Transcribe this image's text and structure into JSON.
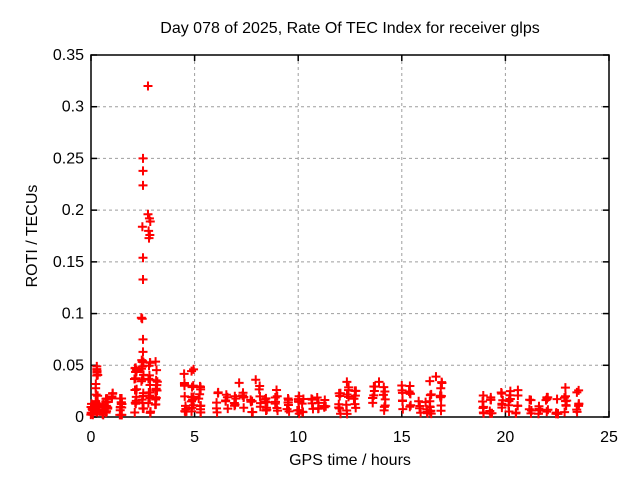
{
  "chart_data": {
    "type": "scatter",
    "title": "Day 078 of 2025, Rate Of TEC Index for receiver glps",
    "xlabel": "GPS time / hours",
    "ylabel": "ROTI / TECUs",
    "xlim": [
      0,
      25
    ],
    "ylim": [
      0,
      0.35
    ],
    "xticks": {
      "values": [
        0,
        5,
        10,
        15,
        20,
        25
      ],
      "labels": [
        "0",
        "5",
        "10",
        "15",
        "20",
        "25"
      ]
    },
    "yticks": {
      "values": [
        0,
        0.05,
        0.1,
        0.15,
        0.2,
        0.25,
        0.3,
        0.35
      ],
      "labels": [
        "0",
        "0.05",
        "0.1",
        "0.15",
        "0.2",
        "0.25",
        "0.3",
        "0.35"
      ]
    },
    "grid": true,
    "legend": "none",
    "marker": {
      "shape": "plus",
      "color": "#ff0000",
      "size": 9,
      "stroke_width": 2
    },
    "grid_color": "#9e9e9e",
    "border_color": "#000000",
    "series_name": "ROTI",
    "points": [
      [
        2.75,
        0.32
      ],
      [
        2.51,
        0.25
      ],
      [
        2.51,
        0.238
      ],
      [
        2.51,
        0.224
      ],
      [
        2.75,
        0.196
      ],
      [
        2.82,
        0.192
      ],
      [
        2.86,
        0.189
      ],
      [
        2.48,
        0.184
      ],
      [
        2.78,
        0.18
      ],
      [
        2.84,
        0.176
      ],
      [
        2.8,
        0.173
      ],
      [
        2.51,
        0.154
      ],
      [
        2.51,
        0.133
      ],
      [
        2.43,
        0.096
      ],
      [
        2.47,
        0.095
      ],
      [
        2.51,
        0.075
      ],
      [
        2.51,
        0.063
      ],
      [
        2.45,
        0.055
      ],
      [
        0.28,
        0.049
      ],
      [
        4.95,
        0.046
      ],
      [
        16.65,
        0.039
      ],
      [
        7.95,
        0.036
      ],
      [
        12.35,
        0.034
      ],
      [
        13.9,
        0.034
      ],
      [
        7.15,
        0.033
      ]
    ],
    "clusters": [
      {
        "x": [
          0.05,
          0.6
        ],
        "y": [
          0.002,
          0.013
        ],
        "n": 25,
        "cols": 3
      },
      {
        "x": [
          0.22,
          0.32
        ],
        "y": [
          0.013,
          0.048
        ],
        "n": 12,
        "cols": 1
      },
      {
        "x": [
          0.75,
          1.45
        ],
        "y": [
          0.002,
          0.018
        ],
        "n": 28,
        "cols": 2
      },
      {
        "x": [
          0.95,
          1.15
        ],
        "y": [
          0.018,
          0.03
        ],
        "n": 4,
        "cols": 1
      },
      {
        "x": [
          2.15,
          3.15
        ],
        "y": [
          0.004,
          0.055
        ],
        "n": 55,
        "cols": 4
      },
      {
        "x": [
          4.55,
          5.25
        ],
        "y": [
          0.004,
          0.045
        ],
        "n": 30,
        "cols": 3
      },
      {
        "x": [
          6.1,
          6.55
        ],
        "y": [
          0.004,
          0.028
        ],
        "n": 10,
        "cols": 2
      },
      {
        "x": [
          6.95,
          7.35
        ],
        "y": [
          0.003,
          0.03
        ],
        "n": 10,
        "cols": 2
      },
      {
        "x": [
          7.75,
          8.15
        ],
        "y": [
          0.004,
          0.032
        ],
        "n": 10,
        "cols": 2
      },
      {
        "x": [
          8.45,
          8.95
        ],
        "y": [
          0.004,
          0.028
        ],
        "n": 14,
        "cols": 2
      },
      {
        "x": [
          9.5,
          10.0
        ],
        "y": [
          0.003,
          0.024
        ],
        "n": 14,
        "cols": 2
      },
      {
        "x": [
          10.25,
          10.7
        ],
        "y": [
          0.004,
          0.018
        ],
        "n": 8,
        "cols": 2
      },
      {
        "x": [
          10.95,
          11.3
        ],
        "y": [
          0.005,
          0.025
        ],
        "n": 8,
        "cols": 2
      },
      {
        "x": [
          12.0,
          12.75
        ],
        "y": [
          0.003,
          0.03
        ],
        "n": 20,
        "cols": 3
      },
      {
        "x": [
          13.65,
          14.15
        ],
        "y": [
          0.006,
          0.032
        ],
        "n": 14,
        "cols": 2
      },
      {
        "x": [
          15.0,
          15.4
        ],
        "y": [
          0.005,
          0.032
        ],
        "n": 12,
        "cols": 2
      },
      {
        "x": [
          15.85,
          16.2
        ],
        "y": [
          0.003,
          0.018
        ],
        "n": 8,
        "cols": 2
      },
      {
        "x": [
          16.4,
          16.9
        ],
        "y": [
          0.003,
          0.036
        ],
        "n": 18,
        "cols": 2
      },
      {
        "x": [
          18.9,
          19.3
        ],
        "y": [
          0.003,
          0.022
        ],
        "n": 12,
        "cols": 2
      },
      {
        "x": [
          19.85,
          20.55
        ],
        "y": [
          0.003,
          0.026
        ],
        "n": 18,
        "cols": 3
      },
      {
        "x": [
          21.2,
          21.65
        ],
        "y": [
          0.003,
          0.018
        ],
        "n": 10,
        "cols": 2
      },
      {
        "x": [
          22.0,
          22.5
        ],
        "y": [
          0.003,
          0.02
        ],
        "n": 12,
        "cols": 2
      },
      {
        "x": [
          22.9,
          23.5
        ],
        "y": [
          0.003,
          0.03
        ],
        "n": 15,
        "cols": 2
      }
    ]
  }
}
